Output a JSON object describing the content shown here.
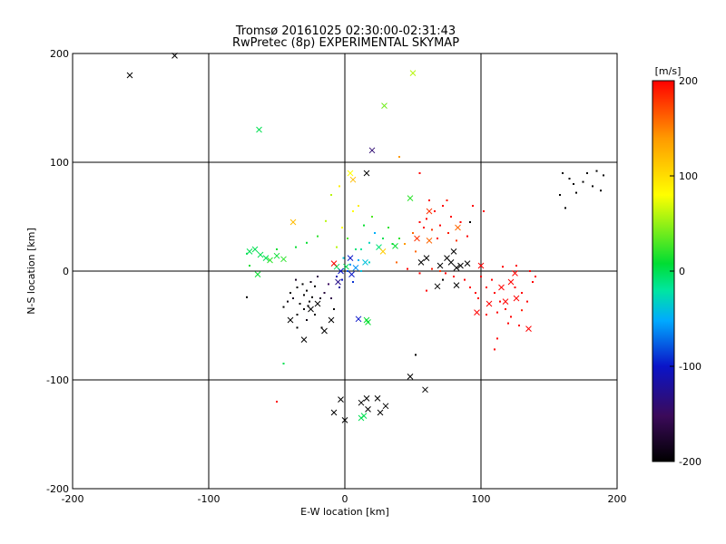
{
  "chart_data": {
    "type": "scatter",
    "title": "Tromsø 20161025 02:30:00-02:31:43",
    "subtitle": "RwPretec (8p) EXPERIMENTAL SKYMAP",
    "xlabel": "E-W location [km]",
    "ylabel": "N-S location [km]",
    "xlim": [
      -200,
      200
    ],
    "ylim": [
      -200,
      200
    ],
    "x_ticks": [
      "-200",
      "-100",
      "0",
      "100",
      "200"
    ],
    "y_ticks": [
      "-200",
      "-100",
      "0",
      "100",
      "200"
    ],
    "grid_lines": [
      -100,
      0,
      100
    ],
    "colorbar": {
      "label": "[m/s]",
      "range": [
        -200,
        200
      ],
      "ticks": [
        "200",
        "100",
        "0",
        "-100",
        "-200"
      ],
      "colors": [
        "#000000",
        "#3b0a5a",
        "#0a14c8",
        "#00aaff",
        "#00e6a0",
        "#00dd33",
        "#ffff00",
        "#ff9900",
        "#ff0000"
      ]
    },
    "points_x": [
      [
        -158,
        180,
        -200
      ],
      [
        -125,
        198,
        -200
      ],
      [
        -63,
        130,
        0
      ],
      [
        50,
        182,
        60
      ],
      [
        29,
        152,
        40
      ],
      [
        20,
        111,
        -140
      ],
      [
        -66,
        20,
        0
      ],
      [
        -70,
        18,
        0
      ],
      [
        -62,
        15,
        0
      ],
      [
        -58,
        12,
        0
      ],
      [
        -55,
        10,
        20
      ],
      [
        -50,
        14,
        10
      ],
      [
        -45,
        11,
        20
      ],
      [
        -64,
        -3,
        10
      ],
      [
        -38,
        45,
        120
      ],
      [
        6,
        84,
        120
      ],
      [
        4,
        90,
        80
      ],
      [
        16,
        90,
        -200
      ],
      [
        -30,
        -63,
        -200
      ],
      [
        -40,
        -45,
        -200
      ],
      [
        -15,
        -55,
        -200
      ],
      [
        -10,
        -45,
        -200
      ],
      [
        -25,
        -35,
        -200
      ],
      [
        -20,
        -30,
        -200
      ],
      [
        -5,
        -10,
        -130
      ],
      [
        5,
        -3,
        -100
      ],
      [
        8,
        3,
        -60
      ],
      [
        10,
        -44,
        -100
      ],
      [
        16,
        -45,
        10
      ],
      [
        17,
        -47,
        10
      ],
      [
        48,
        67,
        20
      ],
      [
        25,
        22,
        -10
      ],
      [
        28,
        18,
        110
      ],
      [
        37,
        23,
        10
      ],
      [
        62,
        28,
        160
      ],
      [
        60,
        12,
        -200
      ],
      [
        56,
        8,
        -200
      ],
      [
        70,
        5,
        -200
      ],
      [
        75,
        12,
        -200
      ],
      [
        78,
        8,
        -200
      ],
      [
        82,
        3,
        -200
      ],
      [
        85,
        5,
        -200
      ],
      [
        90,
        7,
        -200
      ],
      [
        80,
        18,
        -200
      ],
      [
        68,
        -14,
        -200
      ],
      [
        82,
        -13,
        -200
      ],
      [
        48,
        -97,
        -200
      ],
      [
        59,
        -109,
        -200
      ],
      [
        -8,
        -130,
        -200
      ],
      [
        -3,
        -118,
        -200
      ],
      [
        0,
        -137,
        -200
      ],
      [
        12,
        -121,
        -200
      ],
      [
        16,
        -117,
        -200
      ],
      [
        17,
        -127,
        -200
      ],
      [
        24,
        -117,
        -200
      ],
      [
        26,
        -130,
        -200
      ],
      [
        30,
        -124,
        -200
      ],
      [
        14,
        -133,
        0
      ],
      [
        12,
        -135,
        0
      ],
      [
        135,
        -53,
        200
      ],
      [
        125,
        -2,
        200
      ],
      [
        115,
        -15,
        200
      ],
      [
        83,
        40,
        160
      ],
      [
        62,
        55,
        180
      ],
      [
        53,
        30,
        180
      ],
      [
        100,
        5,
        200
      ],
      [
        106,
        -30,
        200
      ],
      [
        118,
        -28,
        200
      ],
      [
        122,
        -10,
        200
      ],
      [
        97,
        -38,
        200
      ],
      [
        126,
        -25,
        200
      ],
      [
        15,
        8,
        -40
      ],
      [
        4,
        12,
        -100
      ],
      [
        1,
        4,
        0
      ],
      [
        -3,
        0,
        -100
      ],
      [
        -6,
        4,
        0
      ],
      [
        -8,
        7,
        200
      ]
    ],
    "points_dot": [
      [
        -40,
        -20,
        -200
      ],
      [
        -35,
        -15,
        -200
      ],
      [
        -38,
        -25,
        -180
      ],
      [
        -30,
        -22,
        -200
      ],
      [
        -28,
        -18,
        -200
      ],
      [
        -26,
        -28,
        -200
      ],
      [
        -33,
        -30,
        -200
      ],
      [
        -42,
        -28,
        -190
      ],
      [
        -30,
        -35,
        -200
      ],
      [
        -22,
        -40,
        -200
      ],
      [
        -18,
        -25,
        -180
      ],
      [
        -15,
        -20,
        -170
      ],
      [
        -25,
        -10,
        -190
      ],
      [
        -20,
        -5,
        -160
      ],
      [
        -12,
        -12,
        -150
      ],
      [
        -35,
        -40,
        -200
      ],
      [
        -45,
        -33,
        -200
      ],
      [
        -28,
        -45,
        -190
      ],
      [
        -17,
        -52,
        -200
      ],
      [
        -8,
        -35,
        -200
      ],
      [
        -24,
        -24,
        -200
      ],
      [
        -31,
        -12,
        -200
      ],
      [
        -36,
        -8,
        -180
      ],
      [
        -22,
        -14,
        -200
      ],
      [
        -27,
        -32,
        -200
      ],
      [
        -10,
        -25,
        -160
      ],
      [
        -6,
        -5,
        -110
      ],
      [
        -2,
        -8,
        -100
      ],
      [
        2,
        0,
        -80
      ],
      [
        -4,
        -15,
        -120
      ],
      [
        6,
        -10,
        -90
      ],
      [
        4,
        6,
        -60
      ],
      [
        10,
        10,
        -50
      ],
      [
        -1,
        12,
        -40
      ],
      [
        12,
        20,
        -20
      ],
      [
        18,
        26,
        -30
      ],
      [
        22,
        35,
        -50
      ],
      [
        28,
        30,
        0
      ],
      [
        14,
        42,
        10
      ],
      [
        20,
        50,
        30
      ],
      [
        32,
        40,
        20
      ],
      [
        40,
        30,
        20
      ],
      [
        35,
        25,
        10
      ],
      [
        12,
        0,
        -40
      ],
      [
        18,
        8,
        -30
      ],
      [
        8,
        20,
        -10
      ],
      [
        2,
        30,
        30
      ],
      [
        -6,
        22,
        60
      ],
      [
        -2,
        40,
        80
      ],
      [
        6,
        55,
        80
      ],
      [
        10,
        60,
        90
      ],
      [
        -4,
        78,
        90
      ],
      [
        -10,
        70,
        60
      ],
      [
        -14,
        46,
        60
      ],
      [
        -20,
        32,
        20
      ],
      [
        -28,
        26,
        10
      ],
      [
        -36,
        22,
        10
      ],
      [
        -50,
        20,
        10
      ],
      [
        -72,
        16,
        0
      ],
      [
        -45,
        -85,
        0
      ],
      [
        -50,
        -120,
        200
      ],
      [
        -70,
        5,
        10
      ],
      [
        55,
        45,
        200
      ],
      [
        60,
        48,
        200
      ],
      [
        66,
        55,
        200
      ],
      [
        72,
        60,
        200
      ],
      [
        78,
        50,
        200
      ],
      [
        70,
        42,
        200
      ],
      [
        64,
        38,
        180
      ],
      [
        58,
        40,
        200
      ],
      [
        76,
        35,
        190
      ],
      [
        82,
        28,
        180
      ],
      [
        68,
        30,
        200
      ],
      [
        62,
        65,
        200
      ],
      [
        75,
        65,
        190
      ],
      [
        85,
        45,
        200
      ],
      [
        90,
        32,
        200
      ],
      [
        50,
        35,
        160
      ],
      [
        44,
        25,
        140
      ],
      [
        52,
        18,
        160
      ],
      [
        38,
        8,
        160
      ],
      [
        46,
        2,
        200
      ],
      [
        55,
        -2,
        200
      ],
      [
        60,
        -18,
        200
      ],
      [
        64,
        2,
        190
      ],
      [
        94,
        60,
        200
      ],
      [
        102,
        55,
        200
      ],
      [
        100,
        -5,
        200
      ],
      [
        104,
        -15,
        200
      ],
      [
        110,
        -20,
        200
      ],
      [
        114,
        -28,
        200
      ],
      [
        118,
        -35,
        200
      ],
      [
        122,
        -42,
        200
      ],
      [
        125,
        -15,
        200
      ],
      [
        130,
        -20,
        200
      ],
      [
        134,
        -28,
        200
      ],
      [
        138,
        -10,
        200
      ],
      [
        128,
        -50,
        200
      ],
      [
        120,
        -48,
        200
      ],
      [
        112,
        -38,
        200
      ],
      [
        108,
        -8,
        200
      ],
      [
        96,
        -20,
        200
      ],
      [
        104,
        -40,
        200
      ],
      [
        140,
        -5,
        200
      ],
      [
        136,
        0,
        200
      ],
      [
        126,
        5,
        200
      ],
      [
        116,
        4,
        200
      ],
      [
        130,
        -36,
        190
      ],
      [
        112,
        -62,
        200
      ],
      [
        110,
        -72,
        200
      ],
      [
        98,
        -25,
        200
      ],
      [
        92,
        -15,
        200
      ],
      [
        88,
        -8,
        200
      ],
      [
        80,
        -5,
        200
      ],
      [
        74,
        -2,
        200
      ],
      [
        70,
        0,
        180
      ],
      [
        55,
        90,
        200
      ],
      [
        40,
        105,
        140
      ],
      [
        52,
        -77,
        -200
      ],
      [
        -72,
        -24,
        -200
      ],
      [
        -35,
        -52,
        -200
      ],
      [
        160,
        90,
        -200
      ],
      [
        165,
        85,
        -200
      ],
      [
        175,
        82,
        -200
      ],
      [
        185,
        92,
        -200
      ],
      [
        190,
        88,
        -200
      ],
      [
        182,
        78,
        -200
      ],
      [
        170,
        72,
        -200
      ],
      [
        162,
        58,
        -200
      ],
      [
        158,
        70,
        -200
      ],
      [
        188,
        74,
        -200
      ],
      [
        178,
        90,
        -200
      ],
      [
        168,
        80,
        -200
      ],
      [
        92,
        45,
        -200
      ],
      [
        72,
        -8,
        -200
      ]
    ]
  }
}
